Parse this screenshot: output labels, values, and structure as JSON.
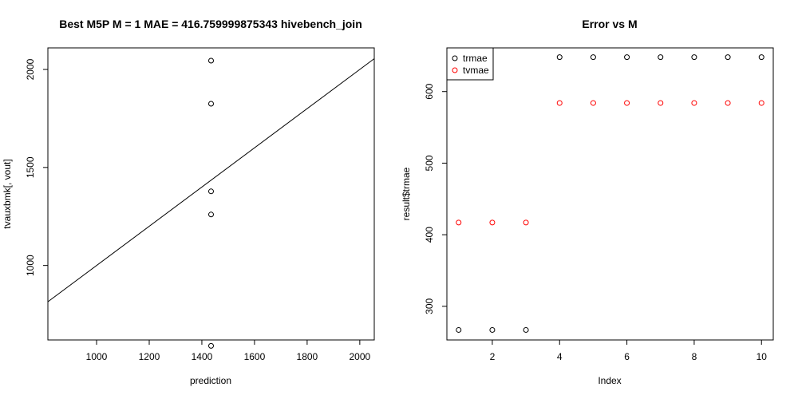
{
  "chart_data": [
    {
      "type": "scatter",
      "title": "Best M5P M = 1 MAE = 416.759999875343 hivebench_join",
      "xlabel": "prediction",
      "ylabel": "tvauxbmk[, vout]",
      "xlim": [
        815,
        2055
      ],
      "ylim": [
        620,
        2110
      ],
      "x_ticks": [
        1000,
        1200,
        1400,
        1600,
        1800,
        2000
      ],
      "y_ticks": [
        1000,
        1500,
        2000
      ],
      "grid": false,
      "series": [
        {
          "points": [
            {
              "x": 1435,
              "y": 2045
            },
            {
              "x": 1435,
              "y": 1825
            },
            {
              "x": 1435,
              "y": 1378
            },
            {
              "x": 1435,
              "y": 1260
            },
            {
              "x": 1435,
              "y": 590
            }
          ],
          "color": "#000000"
        }
      ],
      "reference_line": {
        "intercept": 0,
        "slope": 1,
        "color": "#000000"
      }
    },
    {
      "type": "scatter",
      "title": "Error vs M",
      "xlabel": "Index",
      "ylabel": "result$trmae",
      "xlim": [
        0.65,
        10.35
      ],
      "ylim": [
        253,
        661
      ],
      "x_ticks": [
        2,
        4,
        6,
        8,
        10
      ],
      "y_ticks": [
        300,
        400,
        500,
        600
      ],
      "grid": false,
      "legend": {
        "position": "top-left",
        "entries": [
          "trmae",
          "tvmae"
        ]
      },
      "series": [
        {
          "name": "trmae",
          "color": "#000000",
          "x": [
            1,
            2,
            3,
            4,
            5,
            6,
            7,
            8,
            9,
            10
          ],
          "y": [
            267,
            267,
            267,
            648,
            648,
            648,
            648,
            648,
            648,
            648
          ]
        },
        {
          "name": "tvmae",
          "color": "#ff0000",
          "x": [
            1,
            2,
            3,
            4,
            5,
            6,
            7,
            8,
            9,
            10
          ],
          "y": [
            417,
            417,
            417,
            584,
            584,
            584,
            584,
            584,
            584,
            584
          ]
        }
      ]
    }
  ]
}
